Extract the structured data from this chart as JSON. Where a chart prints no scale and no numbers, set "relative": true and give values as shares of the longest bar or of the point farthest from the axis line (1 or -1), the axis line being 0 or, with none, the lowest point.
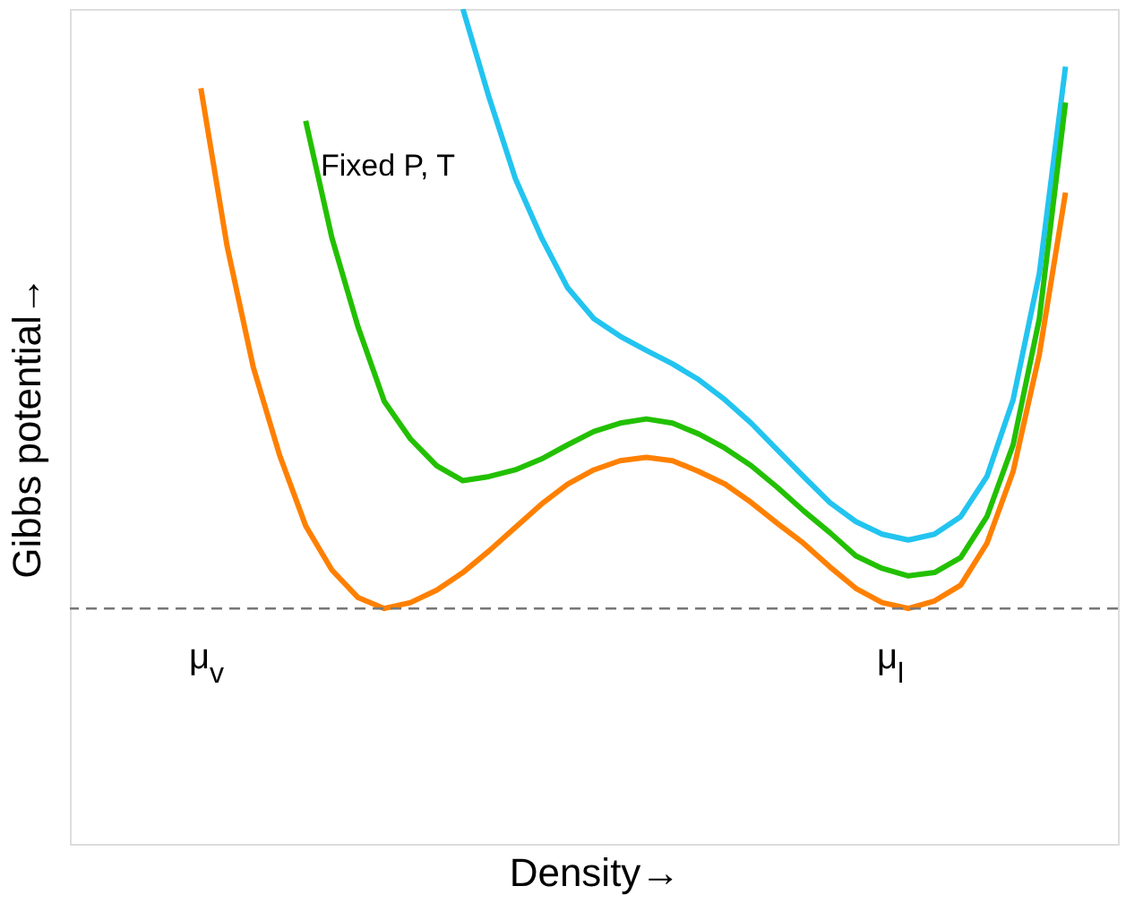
{
  "chart_data": {
    "type": "line",
    "relative": true,
    "xlabel": "Density→",
    "ylabel": "Gibbs potential→",
    "tick_labels": false,
    "marker": "none",
    "line_style": "solid",
    "categories": [
      null,
      null,
      null,
      null,
      null,
      null,
      null,
      null,
      null,
      null,
      null,
      null,
      null,
      null,
      null,
      null,
      null,
      null,
      null,
      null,
      null,
      null,
      null,
      null,
      null,
      null,
      null,
      null,
      null,
      null,
      null,
      null,
      null,
      null,
      null,
      null,
      null,
      null,
      null,
      null,
      null
    ],
    "series": [
      {
        "color": "#22c4f0",
        "values": [
          null,
          null,
          null,
          null,
          null,
          null,
          null,
          null,
          null,
          null,
          null,
          null,
          null,
          null,
          null,
          1.0,
          0.894,
          0.797,
          0.726,
          0.666,
          0.629,
          0.608,
          0.591,
          0.575,
          0.556,
          0.532,
          0.504,
          0.472,
          0.44,
          0.409,
          0.386,
          0.371,
          0.364,
          0.371,
          0.392,
          0.44,
          0.532,
          0.683,
          0.931,
          null,
          null
        ]
      },
      {
        "color": "#22c000",
        "values": [
          null,
          null,
          null,
          null,
          null,
          null,
          null,
          null,
          null,
          0.866,
          0.726,
          0.619,
          0.53,
          0.485,
          0.453,
          0.435,
          0.44,
          0.448,
          0.461,
          0.478,
          0.494,
          0.504,
          0.509,
          0.504,
          0.491,
          0.474,
          0.453,
          0.427,
          0.399,
          0.373,
          0.345,
          0.33,
          0.321,
          0.325,
          0.343,
          0.392,
          0.478,
          0.629,
          0.888,
          null,
          null
        ]
      },
      {
        "color": "#ff8000",
        "values": [
          null,
          null,
          null,
          null,
          null,
          0.905,
          0.716,
          0.571,
          0.466,
          0.381,
          0.328,
          0.295,
          0.282,
          0.289,
          0.304,
          0.325,
          0.351,
          0.379,
          0.407,
          0.431,
          0.448,
          0.459,
          0.463,
          0.459,
          0.446,
          0.431,
          0.409,
          0.384,
          0.36,
          0.332,
          0.306,
          0.289,
          0.282,
          0.291,
          0.31,
          0.36,
          0.446,
          0.586,
          0.78,
          null,
          null
        ]
      }
    ],
    "ref_lines": [
      {
        "axis": "y",
        "value": 0.282,
        "color": "#777777",
        "line_style": "dashed"
      }
    ],
    "annotations": [
      "μ$_{v}$",
      "μ$_{l}$",
      "Fixed P, T"
    ]
  }
}
